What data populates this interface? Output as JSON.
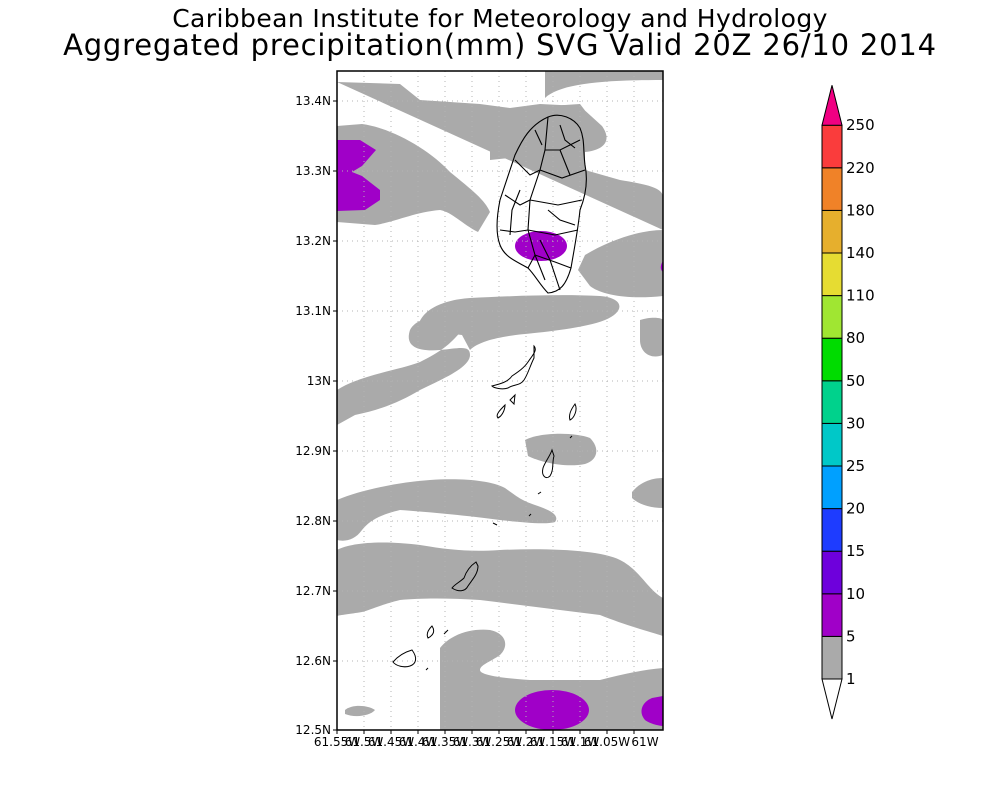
{
  "header": {
    "institute": "Caribbean Institute for Meteorology and Hydrology",
    "product": "Aggregated precipitation(mm) SVG Valid 20Z 26/10 2014"
  },
  "map": {
    "lat_ticks": [
      "13.4N",
      "13.3N",
      "13.2N",
      "13.1N",
      "13N",
      "12.9N",
      "12.8N",
      "12.7N",
      "12.6N",
      "12.5N"
    ],
    "lon_ticks": [
      "61.55W",
      "61.5W",
      "61.45W",
      "61.4W",
      "61.35W",
      "61.3W",
      "61.25W",
      "61.2W",
      "61.15W",
      "61.1W",
      "61.05W",
      "61W"
    ],
    "colors": {
      "class_1_5": "#aaaaaa",
      "class_5_10": "#a000c8",
      "coast": "#000000",
      "grid": "#b4b4b4"
    }
  },
  "colorbar": {
    "levels": [
      "1",
      "5",
      "10",
      "15",
      "20",
      "25",
      "30",
      "50",
      "80",
      "110",
      "140",
      "180",
      "220",
      "250"
    ],
    "colors": [
      "#aaaaaa",
      "#a000c8",
      "#6e00dc",
      "#1e3cff",
      "#00a0ff",
      "#00c8c8",
      "#00d28c",
      "#00dc00",
      "#a0e632",
      "#e6dc32",
      "#e6af2d",
      "#f08228",
      "#fa3c3c",
      "#f00082"
    ]
  }
}
